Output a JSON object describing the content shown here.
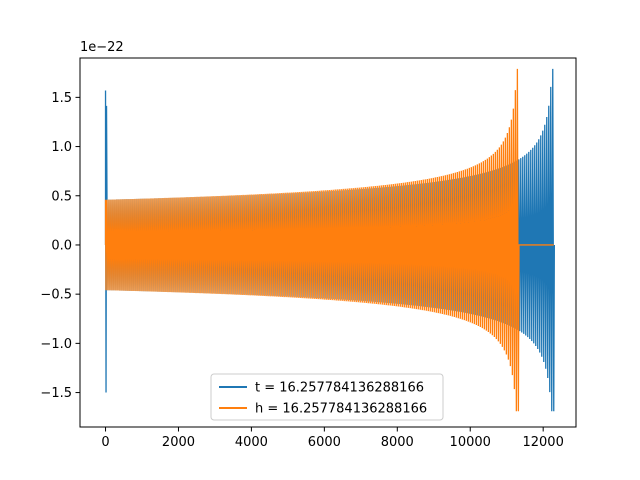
{
  "chart_data": {
    "type": "line",
    "title": "",
    "xlabel": "",
    "ylabel": "",
    "y_offset_label": "1e−22",
    "xlim": [
      -700,
      12900
    ],
    "ylim": [
      -1.85,
      1.9
    ],
    "x_ticks": [
      {
        "value": 0,
        "label": "0"
      },
      {
        "value": 2000,
        "label": "2000"
      },
      {
        "value": 4000,
        "label": "4000"
      },
      {
        "value": 6000,
        "label": "6000"
      },
      {
        "value": 8000,
        "label": "8000"
      },
      {
        "value": 10000,
        "label": "10000"
      },
      {
        "value": 12000,
        "label": "12000"
      }
    ],
    "y_ticks": [
      {
        "value": -1.5,
        "label": "−1.5"
      },
      {
        "value": -1.0,
        "label": "−1.0"
      },
      {
        "value": -0.5,
        "label": "−0.5"
      },
      {
        "value": 0.0,
        "label": "0.0"
      },
      {
        "value": 0.5,
        "label": "0.5"
      },
      {
        "value": 1.0,
        "label": "1.0"
      },
      {
        "value": 1.5,
        "label": "1.5"
      }
    ],
    "grid": false,
    "legend_position": "lower-center",
    "series": [
      {
        "name": "t = 16.257784136288166",
        "color": "#1f77b4",
        "signal": {
          "x_start": 0,
          "chirp_start": 40,
          "chirp_end": 12290,
          "initial_spike_amplitude": 1.57,
          "initial_spike_min": -1.5,
          "start_envelope": 0.46,
          "peak_amplitude": 1.79,
          "peak_min": -1.69,
          "after_end_value": 0.0
        }
      },
      {
        "name": "h = 16.257784136288166",
        "color": "#ff7f0e",
        "signal": {
          "x_start": 0,
          "chirp_start": 40,
          "chirp_end": 11320,
          "initial_spike_amplitude": 0.46,
          "initial_spike_min": -0.46,
          "start_envelope": 0.46,
          "peak_amplitude": 1.79,
          "peak_min": -1.69,
          "flat_until": 12290,
          "after_end_value": 0.0
        }
      }
    ]
  }
}
